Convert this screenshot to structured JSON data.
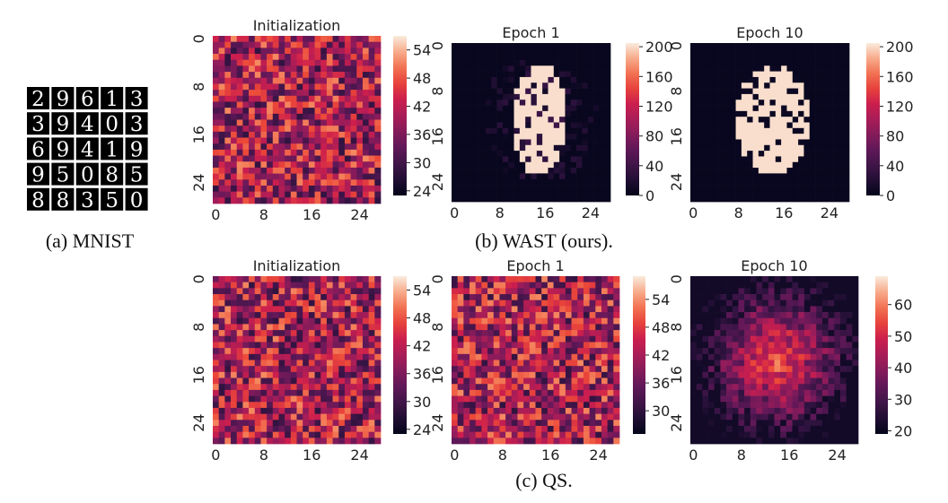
{
  "captions": {
    "a": "(a) MNIST",
    "b": "(b) WAST (ours).",
    "c": "(c) QS."
  },
  "mnist_digits": [
    [
      "2",
      "9",
      "6",
      "1",
      "3"
    ],
    [
      "3",
      "9",
      "4",
      "0",
      "3"
    ],
    [
      "6",
      "9",
      "4",
      "1",
      "9"
    ],
    [
      "9",
      "5",
      "0",
      "8",
      "5"
    ],
    [
      "8",
      "8",
      "3",
      "5",
      "0"
    ]
  ],
  "colormap": "rocket",
  "chart_data": [
    {
      "type": "heatmap",
      "group": "(b) WAST (ours).",
      "title": "Initialization",
      "grid_size": 28,
      "xticks": [
        "0",
        "8",
        "16",
        "24"
      ],
      "yticks": [
        "0",
        "8",
        "16",
        "24"
      ],
      "colorbar_ticks": [
        "54",
        "48",
        "42",
        "36",
        "30",
        "24"
      ],
      "vmin": 23,
      "vmax": 57,
      "pattern": "noise"
    },
    {
      "type": "heatmap",
      "group": "(b) WAST (ours).",
      "title": "Epoch 1",
      "grid_size": 28,
      "xticks": [
        "0",
        "8",
        "16",
        "24"
      ],
      "yticks": [
        "0",
        "8",
        "16",
        "24"
      ],
      "colorbar_ticks": [
        "200",
        "160",
        "120",
        "80",
        "40",
        "0"
      ],
      "vmin": 0,
      "vmax": 205,
      "pattern": "blob_partial"
    },
    {
      "type": "heatmap",
      "group": "(b) WAST (ours).",
      "title": "Epoch 10",
      "grid_size": 28,
      "xticks": [
        "0",
        "8",
        "16",
        "24"
      ],
      "yticks": [
        "0",
        "8",
        "16",
        "24"
      ],
      "colorbar_ticks": [
        "200",
        "160",
        "120",
        "80",
        "40",
        "0"
      ],
      "vmin": 0,
      "vmax": 205,
      "pattern": "blob_full"
    },
    {
      "type": "heatmap",
      "group": "(c) QS.",
      "title": "Initialization",
      "grid_size": 28,
      "xticks": [
        "0",
        "8",
        "16",
        "24"
      ],
      "yticks": [
        "0",
        "8",
        "16",
        "24"
      ],
      "colorbar_ticks": [
        "54",
        "48",
        "42",
        "36",
        "30",
        "24"
      ],
      "vmin": 23,
      "vmax": 57,
      "pattern": "noise"
    },
    {
      "type": "heatmap",
      "group": "(c) QS.",
      "title": "Epoch 1",
      "grid_size": 28,
      "xticks": [
        "0",
        "8",
        "16",
        "24"
      ],
      "yticks": [
        "0",
        "8",
        "16",
        "24"
      ],
      "colorbar_ticks": [
        "54",
        "48",
        "42",
        "36",
        "30"
      ],
      "vmin": 25,
      "vmax": 59,
      "pattern": "noise"
    },
    {
      "type": "heatmap",
      "group": "(c) QS.",
      "title": "Epoch 10",
      "grid_size": 28,
      "xticks": [
        "0",
        "8",
        "16",
        "24"
      ],
      "yticks": [
        "0",
        "8",
        "16",
        "24"
      ],
      "colorbar_ticks": [
        "60",
        "50",
        "40",
        "30",
        "20"
      ],
      "vmin": 19,
      "vmax": 69,
      "pattern": "radial"
    }
  ]
}
